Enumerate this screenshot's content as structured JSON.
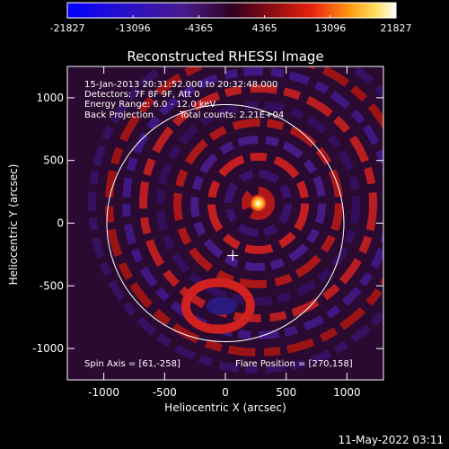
{
  "chart_data": {
    "type": "heatmap",
    "title": "Reconstructed RHESSI Image",
    "xlabel": "Heliocentric X (arcsec)",
    "ylabel": "Heliocentric Y (arcsec)",
    "xlim": [
      -1300,
      1300
    ],
    "ylim": [
      -1250,
      1250
    ],
    "x_ticks": [
      -1000,
      -500,
      0,
      500,
      1000
    ],
    "y_ticks": [
      -1000,
      -500,
      0,
      500,
      1000
    ],
    "colorbar": {
      "range": [
        -21827,
        21827
      ],
      "tick_labels": [
        "-21827",
        "-13096",
        "-4365",
        "4365",
        "13096",
        "21827"
      ],
      "colormap": "blue-purple-red-yellow-white"
    },
    "annotations": {
      "time_range": "15-Jan-2013 20:31:52.000 to 20:32:48.000",
      "detectors": "Detectors: 7F 8F 9F, Att 0",
      "energy_range": "Energy Range: 6.0 - 12.0 keV",
      "method": "Back Projection",
      "total_counts": "Total counts: 2.21E+04",
      "spin_axis": "Spin Axis = [61,-258]",
      "flare_position": "Flare Position = [270,158]"
    },
    "solar_limb_radius_arcsec": 975,
    "sun_center": [
      0,
      0
    ],
    "spin_axis_marker": [
      61,
      -258
    ],
    "flare_source": [
      270,
      158
    ],
    "timestamp": "11-May-2022 03:11"
  },
  "colors": {
    "background": "#000000",
    "limb": "#ffffff",
    "foreground": "#ffffff"
  }
}
